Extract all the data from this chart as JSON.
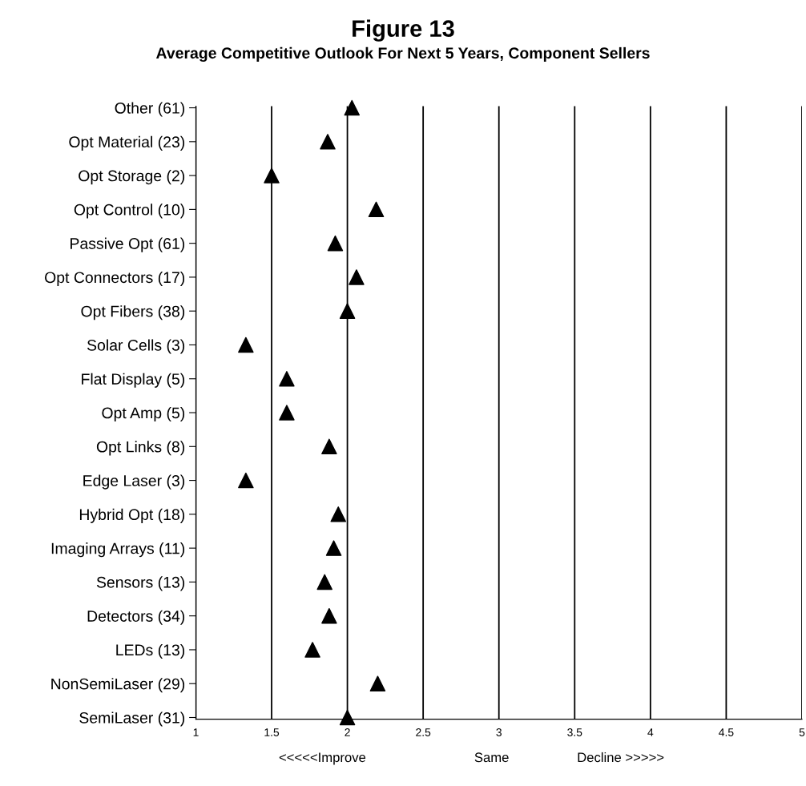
{
  "chart_data": {
    "type": "scatter",
    "orientation": "horizontal",
    "title": "Figure 13",
    "subtitle": "Average Competitive Outlook For Next 5 Years, Component Sellers",
    "categories": [
      "Other (61)",
      "Opt Material (23)",
      "Opt Storage (2)",
      "Opt Control (10)",
      "Passive Opt (61)",
      "Opt Connectors (17)",
      "Opt Fibers (38)",
      "Solar Cells (3)",
      "Flat Display (5)",
      "Opt Amp (5)",
      "Opt Links (8)",
      "Edge Laser (3)",
      "Hybrid Opt (18)",
      "Imaging Arrays (11)",
      "Sensors (13)",
      "Detectors (34)",
      "LEDs (13)",
      "NonSemiLaser (29)",
      "SemiLaser (31)"
    ],
    "values": [
      2.03,
      1.87,
      1.5,
      2.19,
      1.92,
      2.06,
      2.0,
      1.33,
      1.6,
      1.6,
      1.88,
      1.33,
      1.94,
      1.91,
      1.85,
      1.88,
      1.77,
      2.2,
      2.0
    ],
    "color": "#000000",
    "marker": "triangle",
    "xlim": [
      1,
      5
    ],
    "xticks": [
      1,
      1.5,
      2,
      2.5,
      3,
      3.5,
      4,
      4.5,
      5
    ],
    "grid": "x",
    "annotations": [
      "<<<<<Improve",
      "Same",
      "Decline >>>>>"
    ]
  }
}
